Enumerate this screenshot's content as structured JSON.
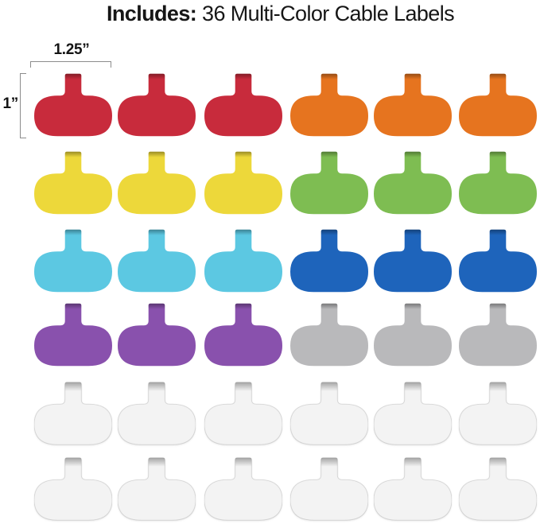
{
  "title": {
    "bold": "Includes:",
    "regular": " 36 Multi-Color Cable Labels"
  },
  "annotations": {
    "width_label": "1.25”",
    "height_label": "1”"
  },
  "palette": {
    "red": "#C82B3C",
    "orange": "#E6741F",
    "yellow": "#EDD83A",
    "green": "#7EBD52",
    "cyan": "#5CC8E2",
    "blue": "#1E64BB",
    "purple": "#8951AD",
    "gray": "#B9B9BB",
    "white": "#F3F3F3"
  },
  "grid": {
    "rows": [
      [
        "red",
        "red",
        "red",
        "orange",
        "orange",
        "orange"
      ],
      [
        "yellow",
        "yellow",
        "yellow",
        "green",
        "green",
        "green"
      ],
      [
        "cyan",
        "cyan",
        "cyan",
        "blue",
        "blue",
        "blue"
      ],
      [
        "purple",
        "purple",
        "purple",
        "gray",
        "gray",
        "gray"
      ],
      [
        "white",
        "white",
        "white",
        "white",
        "white",
        "white"
      ],
      [
        "white",
        "white",
        "white",
        "white",
        "white",
        "white"
      ]
    ]
  }
}
